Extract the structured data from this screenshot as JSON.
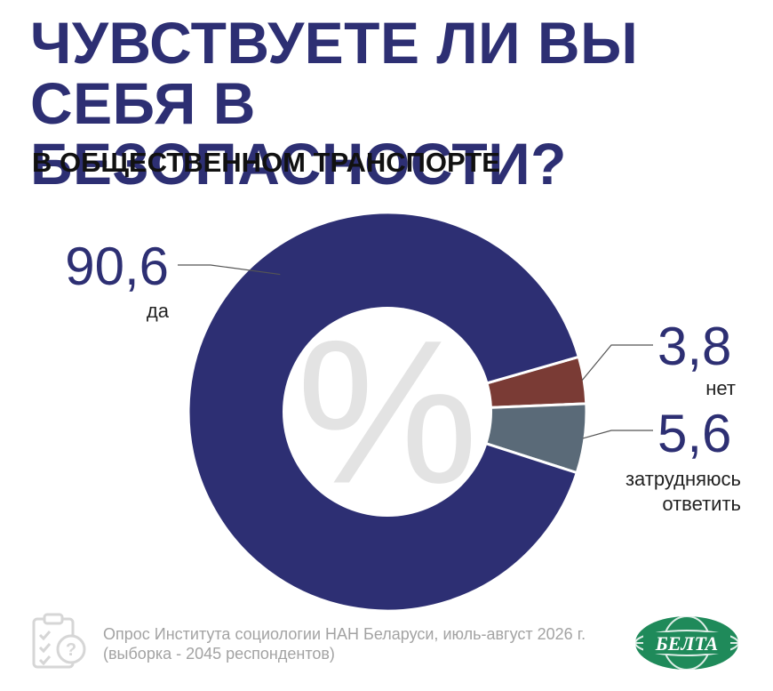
{
  "header": {
    "title_line1": "ЧУВСТВУЕТЕ ЛИ ВЫ",
    "title_line2": "СЕБЯ В БЕЗОПАСНОСТИ?",
    "subtitle": "В ОБЩЕСТВЕННОМ ТРАНСПОРТЕ"
  },
  "chart_data": {
    "type": "pie",
    "variant": "donut",
    "center_symbol": "%",
    "slices": [
      {
        "label": "да",
        "value": 90.6,
        "value_text": "90,6",
        "color": "#2d2f73"
      },
      {
        "label": "нет",
        "value": 3.8,
        "value_text": "3,8",
        "color": "#7a3b35"
      },
      {
        "label": "затрудняюсь ответить",
        "label_lines": [
          "затрудняюсь",
          "ответить"
        ],
        "value": 5.6,
        "value_text": "5,6",
        "color": "#5a6a78"
      }
    ]
  },
  "footer": {
    "source_line1": "Опрос Института социологии НАН Беларуси, июль-август 2026 г.",
    "source_line2": "(выборка - 2045 респондентов)",
    "icon": "clipboard-question-icon",
    "logo_text": "БЕЛТА",
    "logo_color": "#1f8a5a"
  },
  "colors": {
    "title": "#2d2f73",
    "center_symbol": "#e3e3e3",
    "footer_text": "#a3a3a3"
  }
}
